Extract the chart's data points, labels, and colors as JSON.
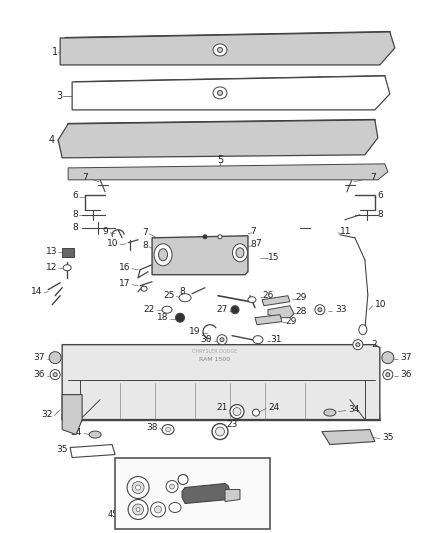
{
  "bg_color": "#ffffff",
  "fig_width": 4.38,
  "fig_height": 5.33,
  "dpi": 100,
  "line_color": "#444444",
  "text_color": "#222222"
}
